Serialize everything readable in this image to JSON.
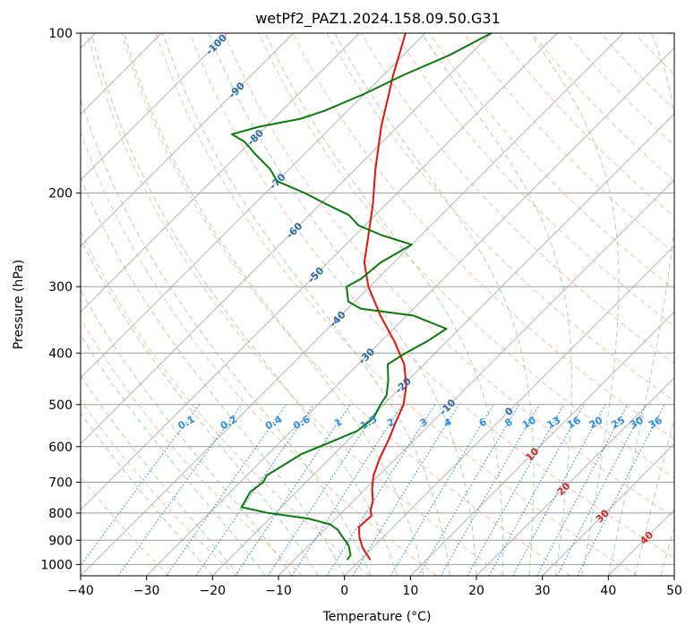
{
  "chart_data": {
    "type": "skew-t",
    "title": "wetPf2_PAZ1.2024.158.09.50.G31",
    "xlabel": "Temperature (°C)",
    "ylabel": "Pressure (hPa)",
    "xlim": [
      -40,
      50
    ],
    "ylim": [
      1050,
      100
    ],
    "y_scale": "log",
    "grid": true,
    "x_ticks": [
      -40,
      -30,
      -20,
      -10,
      0,
      10,
      20,
      30,
      40,
      50
    ],
    "y_ticks": [
      1000,
      900,
      800,
      700,
      600,
      500,
      400,
      300,
      200,
      100
    ],
    "series": [
      {
        "color": "#e8120c",
        "x": [
          1.5,
          -1.5,
          -3.5,
          -5.2,
          -5.0,
          -6.0,
          -7.0,
          -9.0,
          -10.8,
          -12.5,
          -14.0,
          -15.5,
          -17.0,
          -19.5,
          -23.0,
          -28.0,
          -34.0,
          -40.2,
          -44.5,
          -48.0,
          -52.0,
          -57.0,
          -62.5,
          -68.5,
          -73.0
        ],
        "y": [
          980,
          930,
          890,
          850,
          810,
          790,
          760,
          720,
          680,
          630,
          580,
          540,
          500,
          460,
          420,
          380,
          340,
          300,
          270,
          240,
          210,
          180,
          150,
          120,
          100
        ]
      },
      {
        "color": "#0a7a0a",
        "x": [
          -2.0,
          -2.2,
          -4.0,
          -6.0,
          -8.0,
          -10.0,
          -14.0,
          -21.0,
          -26.0,
          -27.0,
          -26.5,
          -27.0,
          -26.0,
          -25.0,
          -22.5,
          -20.0,
          -19.5,
          -20.5,
          -21.0,
          -23.0,
          -25.5,
          -24.5,
          -23.0,
          -22.0,
          -29.0,
          -38.0,
          -41.0,
          -43.5,
          -42.5,
          -42.0,
          -40.0,
          -46.0,
          -51.0,
          -54.0,
          -59.0,
          -64.0,
          -70.0,
          -73.0,
          -77.0,
          -81.0,
          -84.0,
          -81.0,
          -76.0,
          -73.5,
          -70.0,
          -67.0,
          -63.0,
          -60.0
        ],
        "y": [
          980,
          960,
          920,
          890,
          860,
          840,
          820,
          800,
          780,
          730,
          700,
          680,
          650,
          620,
          590,
          560,
          530,
          500,
          480,
          450,
          420,
          400,
          380,
          360,
          340,
          330,
          320,
          300,
          290,
          270,
          250,
          240,
          230,
          220,
          210,
          200,
          190,
          180,
          170,
          160,
          155,
          150,
          145,
          140,
          130,
          120,
          110,
          100
        ]
      }
    ],
    "dry_adiabat_labels": [
      "-100",
      "-90",
      "-80",
      "-70",
      "-60",
      "-50",
      "-40",
      "-30",
      "-20",
      "-10"
    ],
    "moist_adiabat_labels": [
      "0",
      "10",
      "20",
      "30",
      "40"
    ],
    "mixing_ratio_labels": [
      "0.1",
      "0.2",
      "0.4",
      "0.6",
      "1",
      "1.5",
      "2",
      "3",
      "4",
      "6",
      "8",
      "10",
      "13",
      "16",
      "20",
      "25",
      "30",
      "36"
    ],
    "mixing_ratio_values": [
      0.1,
      0.2,
      0.4,
      0.6,
      1,
      1.5,
      2,
      3,
      4,
      6,
      8,
      10,
      13,
      16,
      20,
      25,
      30,
      36
    ],
    "colors": {
      "temperature": "#e8120c",
      "dewpoint": "#0a7a0a",
      "dry_adiabat": "#f4a582",
      "moist_adiabat": "#8cc98c",
      "mixing_ratio": "#3a8fe0",
      "isotherm": "#9e9e9e",
      "isobar": "#9e9e9e",
      "dry_label": "#2a6aa8",
      "moist_label": "#d62728",
      "mixing_label": "#2f8fdf"
    }
  }
}
